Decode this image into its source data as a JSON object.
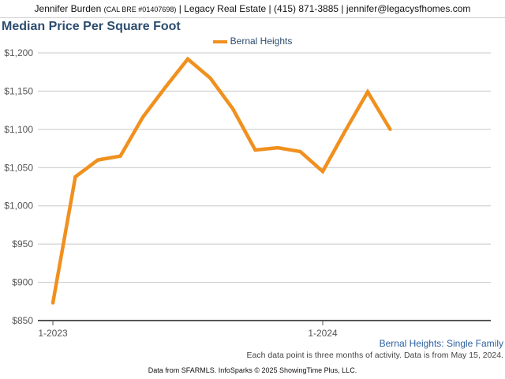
{
  "header": {
    "name": "Jennifer Burden",
    "license": "(CAL BRE #01407698)",
    "rest": "| Legacy Real Estate | (415) 871-3885 | jennifer@legacysfhomes.com"
  },
  "footer": {
    "subtitle": "Bernal Heights: Single Family",
    "note": "Each data point is three months of activity. Data is from May 15, 2024.",
    "source": "Data from SFARMLS. InfoSparks © 2025 ShowingTime Plus, LLC."
  },
  "chart_data": {
    "type": "line",
    "title": "Median Price Per Square Foot",
    "xlabel": "",
    "ylabel": "",
    "ylim": [
      850,
      1200
    ],
    "yticks": [
      850,
      900,
      950,
      1000,
      1050,
      1100,
      1150,
      1200
    ],
    "ytick_labels": [
      "$850",
      "$900",
      "$950",
      "$1,000",
      "$1,050",
      "$1,100",
      "$1,150",
      "$1,200"
    ],
    "x": [
      "2023-01",
      "2023-02",
      "2023-03",
      "2023-04",
      "2023-05",
      "2023-06",
      "2023-07",
      "2023-08",
      "2023-09",
      "2023-10",
      "2023-11",
      "2023-12",
      "2024-01",
      "2024-02",
      "2024-03",
      "2024-04"
    ],
    "xtick_labels": [
      {
        "x": "2023-01",
        "label": "1-2023"
      },
      {
        "x": "2024-01",
        "label": "1-2024"
      }
    ],
    "grid": true,
    "legend_position": "top-center",
    "series": [
      {
        "name": "Bernal Heights",
        "color": "#f0901e",
        "values": [
          873,
          1038,
          1060,
          1065,
          1116,
          1155,
          1192,
          1167,
          1127,
          1073,
          1076,
          1071,
          1045,
          1098,
          1149,
          1100
        ]
      }
    ]
  }
}
